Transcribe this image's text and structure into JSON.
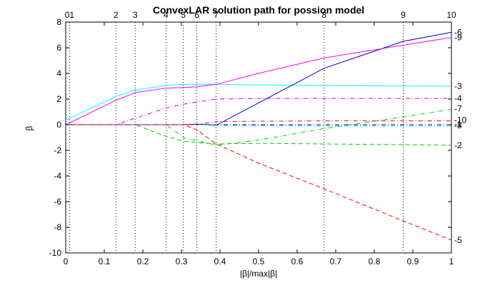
{
  "chart_data": {
    "type": "line",
    "title": "ConvexLAR solution path for possion model",
    "xlabel": "|β|/max|β|",
    "ylabel": "β",
    "xlim": [
      0,
      1
    ],
    "ylim": [
      -10,
      8
    ],
    "xticks": [
      "0",
      "0.1",
      "0.2",
      "0.3",
      "0.4",
      "0.5",
      "0.6",
      "0.7",
      "0.8",
      "0.9",
      "1"
    ],
    "yticks": [
      "-10",
      "-8",
      "-6",
      "-4",
      "-2",
      "0",
      "2",
      "4",
      "6",
      "8"
    ],
    "grid": false,
    "top_step_labels": [
      {
        "x": 0.01,
        "label": "01"
      },
      {
        "x": 0.13,
        "label": "2"
      },
      {
        "x": 0.18,
        "label": "3"
      },
      {
        "x": 0.26,
        "label": "4"
      },
      {
        "x": 0.305,
        "label": "5"
      },
      {
        "x": 0.34,
        "label": "6"
      },
      {
        "x": 0.39,
        "label": "7"
      },
      {
        "x": 0.67,
        "label": "8"
      },
      {
        "x": 0.875,
        "label": "9"
      },
      {
        "x": 1.0,
        "label": "10"
      }
    ],
    "vertical_step_lines": [
      0.01,
      0.13,
      0.18,
      0.26,
      0.305,
      0.34,
      0.39,
      0.67,
      0.875
    ],
    "series": [
      {
        "name": "1",
        "color": "#0000ff",
        "dash": "-.",
        "x": [
          0,
          1
        ],
        "y": [
          0,
          0
        ]
      },
      {
        "name": "2",
        "color": "#00cc00",
        "dash": "--",
        "x": [
          0,
          0.18,
          0.26,
          0.305,
          0.39,
          0.5,
          0.67,
          1.0
        ],
        "y": [
          0,
          0,
          -0.9,
          -1.3,
          -1.5,
          -1.45,
          -1.5,
          -1.6
        ]
      },
      {
        "name": "3",
        "color": "#00ffff",
        "dash": "",
        "x": [
          0,
          0.13,
          0.18,
          0.26,
          0.305,
          0.39,
          0.5,
          0.67,
          1.0
        ],
        "y": [
          0.35,
          2.2,
          2.7,
          3.05,
          3.15,
          3.15,
          3.1,
          3.05,
          3.0
        ]
      },
      {
        "name": "4",
        "color": "#cc00cc",
        "dash": "-.",
        "x": [
          0,
          0.13,
          0.18,
          0.26,
          0.305,
          0.39,
          0.5,
          0.67,
          1.0
        ],
        "y": [
          0,
          0,
          0.5,
          1.3,
          1.6,
          2.0,
          2.05,
          2.05,
          2.05
        ]
      },
      {
        "name": "5",
        "color": "#ff0000",
        "dash": "--",
        "x": [
          0,
          0.305,
          0.34,
          0.39,
          0.5,
          0.67,
          0.875,
          1.0
        ],
        "y": [
          0,
          0,
          -0.4,
          -1.5,
          -3.0,
          -5.0,
          -7.5,
          -9.0
        ]
      },
      {
        "name": "6",
        "color": "#0000cc",
        "dash": "",
        "x": [
          0,
          0.305,
          0.34,
          0.39,
          0.5,
          0.67,
          0.875,
          1.0
        ],
        "y": [
          0,
          0,
          0.05,
          -0.05,
          1.7,
          4.4,
          6.5,
          7.2
        ]
      },
      {
        "name": "7",
        "color": "#00cc00",
        "dash": "-.",
        "x": [
          0,
          0.26,
          0.305,
          0.39,
          0.5,
          0.67,
          0.875,
          1.0
        ],
        "y": [
          0,
          0,
          -1.0,
          -1.6,
          -1.2,
          -0.3,
          0.6,
          1.2
        ]
      },
      {
        "name": "8",
        "color": "#00cccc",
        "dash": "-.",
        "x": [
          0,
          0.34,
          0.39,
          0.67,
          1.0
        ],
        "y": [
          0,
          0,
          -0.05,
          -0.1,
          -0.1
        ]
      },
      {
        "name": "9",
        "color": "#ff00ff",
        "dash": "",
        "x": [
          0,
          0.13,
          0.18,
          0.26,
          0.305,
          0.34,
          0.39,
          0.5,
          0.67,
          0.875,
          1.0
        ],
        "y": [
          0,
          1.9,
          2.5,
          2.85,
          2.9,
          2.95,
          3.15,
          4.0,
          5.2,
          6.2,
          6.8
        ]
      },
      {
        "name": "10",
        "color": "#ff0000",
        "dash": "-.",
        "x": [
          0,
          0.34,
          0.39,
          0.67,
          1.0
        ],
        "y": [
          0,
          0,
          0.25,
          0.3,
          0.3
        ]
      }
    ],
    "right_end_labels": [
      {
        "y": 7.2,
        "label": "6"
      },
      {
        "y": 6.8,
        "label": "9"
      },
      {
        "y": 3.0,
        "label": "3"
      },
      {
        "y": 2.05,
        "label": "4"
      },
      {
        "y": 1.25,
        "label": "7"
      },
      {
        "y": 0.35,
        "label": "10"
      },
      {
        "y": 0.05,
        "label": "1"
      },
      {
        "y": -0.05,
        "label": "8"
      },
      {
        "y": -1.6,
        "label": "2"
      },
      {
        "y": -9.0,
        "label": "5"
      }
    ]
  }
}
